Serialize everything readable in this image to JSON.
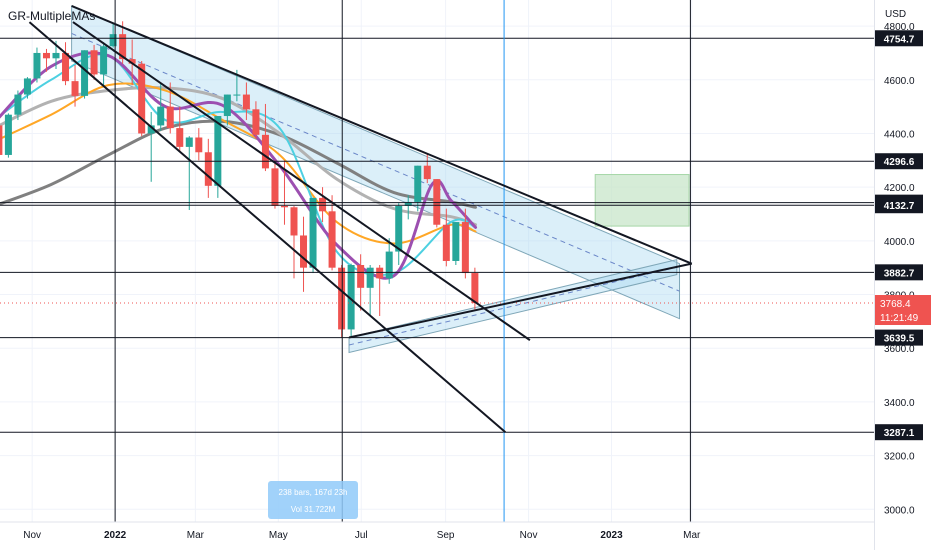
{
  "header": {
    "indicator": "GR-MultipleMAs",
    "currency": "USD"
  },
  "chart_data": {
    "type": "candlestick",
    "ylim": [
      2960,
      4860
    ],
    "y_ticks": [
      3000,
      3200,
      3400,
      3600,
      3800,
      4000,
      4200,
      4400,
      4600,
      4800
    ],
    "y_tick_labels": [
      "3000.0",
      "3200.0",
      "3400.0",
      "3600.0",
      "3800.0",
      "4000.0",
      "4200.0",
      "4400.0",
      "4600.0",
      "4800.0"
    ],
    "x_labels": [
      {
        "label": "Nov",
        "date": "2021-11-01"
      },
      {
        "label": "2022",
        "date": "2022-01-01"
      },
      {
        "label": "Mar",
        "date": "2022-03-01"
      },
      {
        "label": "May",
        "date": "2022-05-01"
      },
      {
        "label": "Jul",
        "date": "2022-07-01"
      },
      {
        "label": "Sep",
        "date": "2022-09-01"
      },
      {
        "label": "Nov",
        "date": "2022-11-01"
      },
      {
        "label": "2023",
        "date": "2023-01-01"
      },
      {
        "label": "Mar",
        "date": "2023-03-01"
      }
    ],
    "price_levels": [
      {
        "label": "4754.7",
        "value": 4754.7
      },
      {
        "label": "4296.6",
        "value": 4296.6
      },
      {
        "label": "4142.3",
        "value": 4142.3
      },
      {
        "label": "4132.7",
        "value": 4132.7
      },
      {
        "label": "3882.7",
        "value": 3882.7
      },
      {
        "label": "3639.5",
        "value": 3639.5
      },
      {
        "label": "3287.1",
        "value": 3287.1
      }
    ],
    "current_price": {
      "label": "3768.4",
      "countdown": "11:21:49",
      "value": 3768.4
    },
    "vertical_lines": [
      {
        "date": "2022-01-01",
        "color": "#131722"
      },
      {
        "date": "2022-06-17",
        "color": "#131722"
      },
      {
        "date": "2022-10-14",
        "color": "#2196f3"
      },
      {
        "date": "2023-02-28",
        "color": "#131722"
      }
    ],
    "candles_ohlc": [
      [
        "2021-10-04",
        4430,
        4470,
        4290,
        4320
      ],
      [
        "2021-10-11",
        4320,
        4475,
        4310,
        4470
      ],
      [
        "2021-10-18",
        4470,
        4560,
        4450,
        4545
      ],
      [
        "2021-10-25",
        4545,
        4610,
        4530,
        4605
      ],
      [
        "2021-11-01",
        4605,
        4720,
        4590,
        4700
      ],
      [
        "2021-11-08",
        4700,
        4715,
        4630,
        4680
      ],
      [
        "2021-11-15",
        4680,
        4745,
        4640,
        4700
      ],
      [
        "2021-11-22",
        4700,
        4740,
        4580,
        4595
      ],
      [
        "2021-11-29",
        4595,
        4655,
        4500,
        4540
      ],
      [
        "2021-12-06",
        4540,
        4710,
        4530,
        4710
      ],
      [
        "2021-12-13",
        4710,
        4730,
        4600,
        4620
      ],
      [
        "2021-12-20",
        4620,
        4740,
        4580,
        4725
      ],
      [
        "2021-12-27",
        4725,
        4808,
        4720,
        4770
      ],
      [
        "2022-01-03",
        4770,
        4818,
        4660,
        4677
      ],
      [
        "2022-01-10",
        4677,
        4750,
        4580,
        4660
      ],
      [
        "2022-01-17",
        4660,
        4670,
        4390,
        4400
      ],
      [
        "2022-01-24",
        4400,
        4480,
        4220,
        4430
      ],
      [
        "2022-01-31",
        4430,
        4590,
        4410,
        4500
      ],
      [
        "2022-02-07",
        4500,
        4590,
        4400,
        4420
      ],
      [
        "2022-02-14",
        4420,
        4500,
        4330,
        4350
      ],
      [
        "2022-02-21",
        4350,
        4390,
        4115,
        4385
      ],
      [
        "2022-02-28",
        4385,
        4420,
        4300,
        4330
      ],
      [
        "2022-03-07",
        4330,
        4380,
        4160,
        4205
      ],
      [
        "2022-03-14",
        4205,
        4465,
        4160,
        4465
      ],
      [
        "2022-03-21",
        4465,
        4545,
        4430,
        4545
      ],
      [
        "2022-03-28",
        4545,
        4637,
        4520,
        4545
      ],
      [
        "2022-04-04",
        4545,
        4590,
        4450,
        4490
      ],
      [
        "2022-04-11",
        4490,
        4520,
        4380,
        4395
      ],
      [
        "2022-04-18",
        4395,
        4510,
        4260,
        4270
      ],
      [
        "2022-04-25",
        4270,
        4300,
        4120,
        4130
      ],
      [
        "2022-05-02",
        4130,
        4300,
        4060,
        4125
      ],
      [
        "2022-05-09",
        4125,
        4130,
        3860,
        4020
      ],
      [
        "2022-05-16",
        4020,
        4090,
        3810,
        3900
      ],
      [
        "2022-05-23",
        3900,
        4160,
        3880,
        4160
      ],
      [
        "2022-05-30",
        4160,
        4200,
        4070,
        4110
      ],
      [
        "2022-06-06",
        4110,
        4170,
        3890,
        3900
      ],
      [
        "2022-06-13",
        3900,
        3910,
        3640,
        3670
      ],
      [
        "2022-06-20",
        3670,
        3915,
        3640,
        3910
      ],
      [
        "2022-06-27",
        3910,
        3950,
        3740,
        3825
      ],
      [
        "2022-07-04",
        3825,
        3910,
        3720,
        3900
      ],
      [
        "2022-07-11",
        3900,
        3910,
        3720,
        3860
      ],
      [
        "2022-07-18",
        3860,
        4010,
        3840,
        3960
      ],
      [
        "2022-07-25",
        3960,
        4140,
        3910,
        4130
      ],
      [
        "2022-08-01",
        4130,
        4170,
        4080,
        4145
      ],
      [
        "2022-08-08",
        4145,
        4280,
        4110,
        4280
      ],
      [
        "2022-08-15",
        4280,
        4325,
        4215,
        4230
      ],
      [
        "2022-08-22",
        4230,
        4200,
        4050,
        4060
      ],
      [
        "2022-08-29",
        4060,
        4120,
        3905,
        3925
      ],
      [
        "2022-09-05",
        3925,
        4070,
        3910,
        4070
      ],
      [
        "2022-09-12",
        4070,
        4120,
        3860,
        3880
      ],
      [
        "2022-09-19",
        3880,
        3900,
        3745,
        3768
      ]
    ],
    "channel_boxes": [
      {
        "from": [
          "2021-11-30",
          4875
        ],
        "to": [
          "2023-02-20",
          3915
        ],
        "width": 55
      },
      {
        "from": [
          "2022-06-22",
          3640
        ],
        "to": [
          "2023-02-18",
          3930
        ],
        "width": 15
      }
    ],
    "trendlines": [
      {
        "from": [
          "2021-11-30",
          4875
        ],
        "to": [
          "2023-03-01",
          3915
        ],
        "width": 2
      },
      {
        "from": [
          "2022-06-22",
          3640
        ],
        "to": [
          "2023-03-01",
          3915
        ],
        "width": 2
      },
      {
        "from": [
          "2021-10-30",
          4815
        ],
        "to": [
          "2022-10-15",
          3287
        ],
        "width": 2
      },
      {
        "from": [
          "2021-12-01",
          4815
        ],
        "to": [
          "2022-11-02",
          3630
        ],
        "width": 2
      }
    ],
    "target_box": {
      "from": [
        "2022-12-20",
        4247
      ],
      "to": [
        "2023-02-27",
        4055
      ],
      "color": "#c8e6c9"
    },
    "moving_averages": [
      {
        "color": "#808080",
        "width": 3,
        "points": [
          [
            "2021-10-04",
            4130
          ],
          [
            "2021-11-15",
            4210
          ],
          [
            "2021-12-27",
            4320
          ],
          [
            "2022-02-07",
            4420
          ],
          [
            "2022-03-21",
            4445
          ],
          [
            "2022-05-02",
            4395
          ],
          [
            "2022-06-13",
            4290
          ],
          [
            "2022-07-25",
            4180
          ],
          [
            "2022-09-05",
            4145
          ],
          [
            "2022-09-23",
            4125
          ]
        ]
      },
      {
        "color": "#b2b2b2",
        "width": 3,
        "points": [
          [
            "2021-10-04",
            4420
          ],
          [
            "2021-11-15",
            4520
          ],
          [
            "2021-12-27",
            4560
          ],
          [
            "2022-02-07",
            4570
          ],
          [
            "2022-03-21",
            4530
          ],
          [
            "2022-05-02",
            4400
          ],
          [
            "2022-06-13",
            4230
          ],
          [
            "2022-07-25",
            4120
          ],
          [
            "2022-09-05",
            4090
          ],
          [
            "2022-09-23",
            4060
          ]
        ]
      },
      {
        "color": "#ffa726",
        "width": 2,
        "points": [
          [
            "2021-10-04",
            4370
          ],
          [
            "2021-11-15",
            4470
          ],
          [
            "2021-12-27",
            4580
          ],
          [
            "2022-02-07",
            4560
          ],
          [
            "2022-03-21",
            4450
          ],
          [
            "2022-05-02",
            4320
          ],
          [
            "2022-06-13",
            4070
          ],
          [
            "2022-07-25",
            3990
          ],
          [
            "2022-09-05",
            4060
          ],
          [
            "2022-09-23",
            4035
          ]
        ]
      },
      {
        "color": "#4dd0e1",
        "width": 2,
        "points": [
          [
            "2021-10-04",
            4450
          ],
          [
            "2021-11-15",
            4600
          ],
          [
            "2021-12-27",
            4690
          ],
          [
            "2022-02-07",
            4450
          ],
          [
            "2022-03-21",
            4480
          ],
          [
            "2022-05-02",
            4420
          ],
          [
            "2022-06-13",
            3960
          ],
          [
            "2022-07-25",
            3880
          ],
          [
            "2022-09-05",
            4070
          ],
          [
            "2022-09-23",
            4050
          ]
        ]
      },
      {
        "color": "#9c4fb0",
        "width": 3,
        "points": [
          [
            "2021-10-04",
            4440
          ],
          [
            "2021-11-15",
            4650
          ],
          [
            "2021-12-27",
            4690
          ],
          [
            "2022-02-07",
            4500
          ],
          [
            "2022-03-21",
            4505
          ],
          [
            "2022-05-02",
            4280
          ],
          [
            "2022-06-13",
            3985
          ],
          [
            "2022-07-25",
            3870
          ],
          [
            "2022-08-22",
            4210
          ],
          [
            "2022-09-05",
            4150
          ],
          [
            "2022-09-23",
            4050
          ]
        ]
      }
    ]
  },
  "measure_tooltip": {
    "bars": "238 bars, 167d 23h",
    "vol": "Vol 31.722M"
  }
}
